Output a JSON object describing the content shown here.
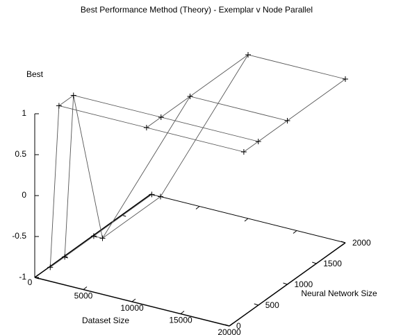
{
  "chart_data": {
    "type": "surface3d",
    "title": "Best Performance Method (Theory) - Exemplar v Node Parallel",
    "xlabel": "Dataset Size",
    "ylabel": "Neural Network Size",
    "zlabel": "Best",
    "x": [
      100,
      1000,
      10000,
      20000
    ],
    "y": [
      250,
      500,
      1000,
      2000
    ],
    "z": [
      [
        -1,
        -1,
        -1,
        -1
      ],
      [
        1,
        1,
        -1,
        -1
      ],
      [
        1,
        1,
        1,
        1
      ],
      [
        1,
        1,
        1,
        1
      ]
    ],
    "color": "#555555",
    "xlim": [
      0,
      20000
    ],
    "xticks": [
      0,
      5000,
      10000,
      15000,
      20000
    ],
    "ylim": [
      0,
      2000
    ],
    "yticks": [
      0,
      500,
      1000,
      1500,
      2000
    ],
    "zlim": [
      -1,
      1
    ],
    "zticks": [
      -1,
      -0.5,
      0,
      0.5,
      1
    ]
  }
}
